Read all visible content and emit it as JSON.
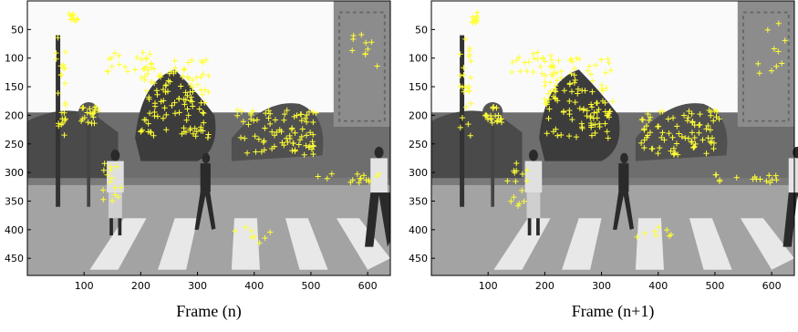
{
  "panels": [
    {
      "caption": "Frame (n)",
      "xlim": [
        0,
        640
      ],
      "ylim": [
        0,
        480
      ],
      "y_reversed": true,
      "xticks": [
        100,
        200,
        300,
        400,
        500,
        600
      ],
      "yticks": [
        50,
        100,
        150,
        200,
        250,
        300,
        350,
        400,
        450
      ]
    },
    {
      "caption": "Frame (n+1)",
      "xlim": [
        0,
        640
      ],
      "ylim": [
        0,
        480
      ],
      "y_reversed": true,
      "xticks": [
        100,
        200,
        300,
        400,
        500,
        600
      ],
      "yticks": [
        50,
        100,
        150,
        200,
        250,
        300,
        350,
        400,
        450
      ]
    }
  ]
}
